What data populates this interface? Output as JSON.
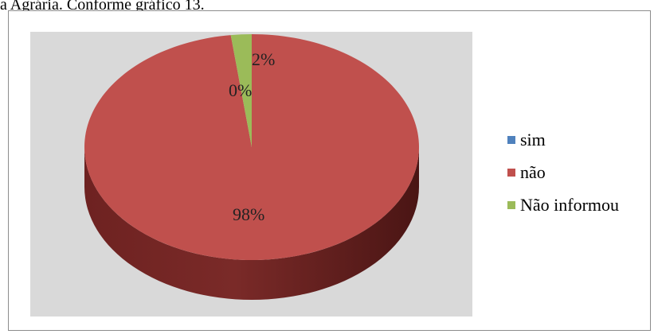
{
  "caption": "a Agrária. Conforme gráfico 13.",
  "chart_data": {
    "type": "pie",
    "title": "",
    "categories": [
      "sim",
      "não",
      "Não informou"
    ],
    "values": [
      0,
      98,
      2
    ],
    "data_labels": [
      "0%",
      "98%",
      "2%"
    ],
    "colors": [
      "#4f81bd",
      "#c0504d",
      "#9bbb59"
    ],
    "three_d": true,
    "legend_position": "right"
  }
}
